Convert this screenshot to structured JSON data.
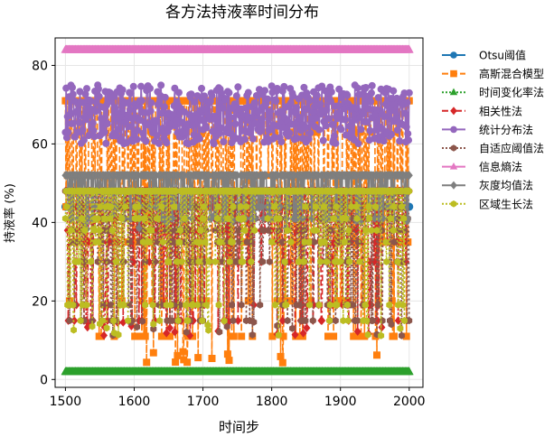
{
  "chart_data": {
    "type": "line",
    "title": "各方法持液率时间分布",
    "xlabel": "时间步",
    "ylabel": "持液率 (%)",
    "xlim": [
      1485,
      2020
    ],
    "ylim": [
      -2,
      87
    ],
    "xticks": [
      1500,
      1600,
      1700,
      1800,
      1900,
      2000
    ],
    "yticks": [
      0,
      20,
      40,
      60,
      80
    ],
    "grid": true,
    "legend_position": "right",
    "x_range": [
      1500,
      2000
    ],
    "series": [
      {
        "name": "Otsu阈值",
        "color": "#1f77b4",
        "marker": "circle",
        "linestyle": "solid",
        "pattern": "constant",
        "value": 44
      },
      {
        "name": "高斯混合模型",
        "color": "#ff7f0e",
        "marker": "square",
        "linestyle": "dashed",
        "pattern": "oscillating",
        "levels": [
          71,
          63,
          52,
          44,
          35,
          20,
          11
        ],
        "min_value": 3.5
      },
      {
        "name": "时间变化率法",
        "color": "#2ca02c",
        "marker": "triangle",
        "linestyle": "dotted",
        "pattern": "constant",
        "value": 2
      },
      {
        "name": "相关性法",
        "color": "#d62728",
        "marker": "diamond",
        "linestyle": "dashdot",
        "pattern": "oscillating",
        "levels": [
          48,
          44,
          41,
          38,
          35,
          30,
          19,
          15
        ],
        "min_value": 11
      },
      {
        "name": "统计分布法",
        "color": "#9467bd",
        "marker": "circle",
        "linestyle": "solid",
        "pattern": "fluctuating",
        "range": [
          60,
          75
        ]
      },
      {
        "name": "自适应阈值法",
        "color": "#8c564b",
        "marker": "hexagon",
        "linestyle": "dotted",
        "pattern": "oscillating",
        "levels": [
          48,
          44,
          41,
          38,
          35,
          30,
          19,
          15
        ],
        "min_value": 11
      },
      {
        "name": "信息熵法",
        "color": "#e377c2",
        "marker": "triangle",
        "linestyle": "solid",
        "pattern": "constant",
        "value": 84
      },
      {
        "name": "灰度均值法",
        "color": "#7f7f7f",
        "marker": "diamond",
        "linestyle": "solid",
        "pattern": "oscillating",
        "levels": [
          52,
          48,
          44,
          41
        ],
        "min_value": 38
      },
      {
        "name": "区域生长法",
        "color": "#bcbd22",
        "marker": "hexagon",
        "linestyle": "dotted",
        "pattern": "oscillating",
        "levels": [
          48,
          44,
          41,
          38,
          35,
          30,
          19,
          15
        ],
        "min_value": 11
      }
    ]
  }
}
